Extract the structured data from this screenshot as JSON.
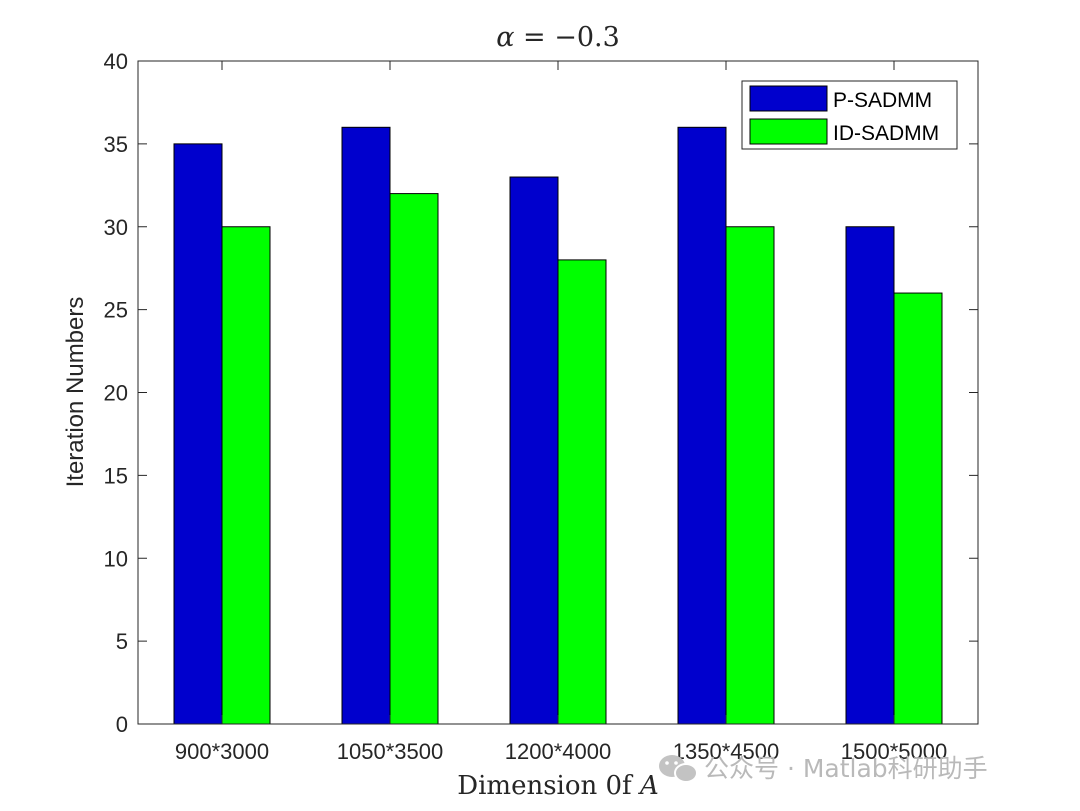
{
  "chart_data": {
    "type": "bar",
    "title_prefix": "α",
    "title_rest": " = −0.3",
    "xlabel_prefix": "Dimension 0f ",
    "xlabel_var": "A",
    "ylabel": "Iteration Numbers",
    "categories": [
      "900*3000",
      "1050*3500",
      "1200*4000",
      "1350*4500",
      "1500*5000"
    ],
    "series": [
      {
        "name": "P-SADMM",
        "color": "#0000cd",
        "values": [
          35,
          36,
          33,
          36,
          30
        ]
      },
      {
        "name": "ID-SADMM",
        "color": "#00ff00",
        "values": [
          30,
          32,
          28,
          30,
          26
        ]
      }
    ],
    "ylim": [
      0,
      40
    ],
    "yticks": [
      0,
      5,
      10,
      15,
      20,
      25,
      30,
      35,
      40
    ],
    "grid": false,
    "legend_position": "top-right"
  },
  "watermark": {
    "icon": "wechat-icon",
    "text": "公众号 · Matlab科研助手"
  }
}
